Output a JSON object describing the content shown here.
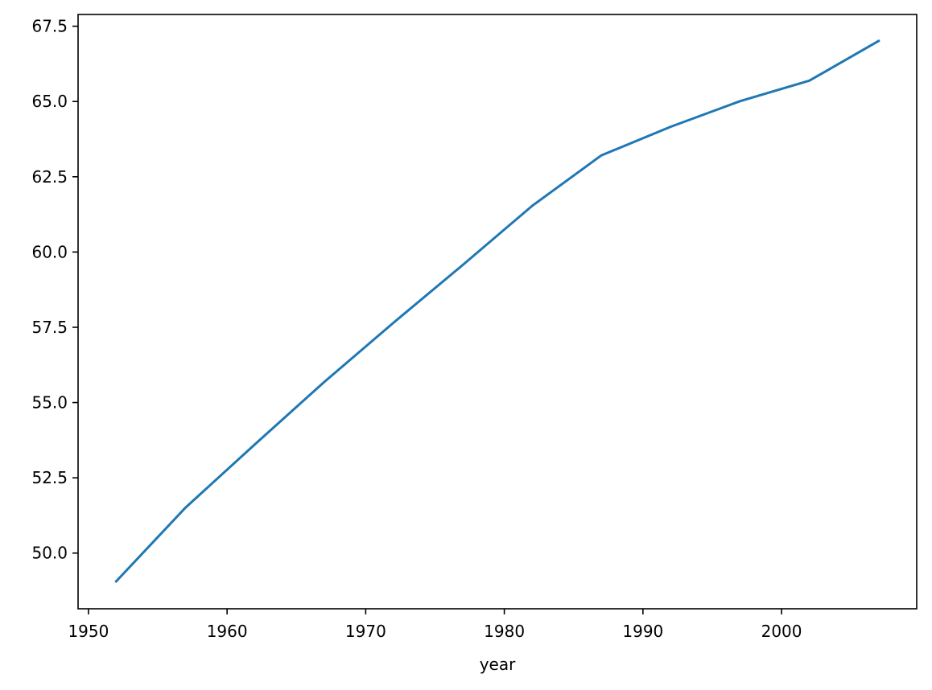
{
  "chart_data": {
    "type": "line",
    "title": "",
    "xlabel": "year",
    "ylabel": "",
    "xlim": [
      1949.25,
      2009.75
    ],
    "ylim": [
      48.15,
      67.89
    ],
    "grid": false,
    "legend": "none",
    "x_ticks": [
      1950,
      1960,
      1970,
      1980,
      1990,
      2000
    ],
    "x_tick_labels": [
      "1950",
      "1960",
      "1970",
      "1980",
      "1990",
      "2000"
    ],
    "y_ticks": [
      50.0,
      52.5,
      55.0,
      57.5,
      60.0,
      62.5,
      65.0,
      67.5
    ],
    "y_tick_labels": [
      "50.0",
      "52.5",
      "55.0",
      "57.5",
      "60.0",
      "62.5",
      "65.0",
      "67.5"
    ],
    "series": [
      {
        "color": "#1f77b4",
        "x": [
          1952,
          1957,
          1962,
          1967,
          1972,
          1977,
          1982,
          1987,
          1992,
          1997,
          2002,
          2007
        ],
        "y": [
          49.06,
          51.51,
          53.61,
          55.68,
          57.65,
          59.57,
          61.53,
          63.21,
          64.16,
          65.01,
          65.69,
          67.01
        ]
      }
    ]
  }
}
